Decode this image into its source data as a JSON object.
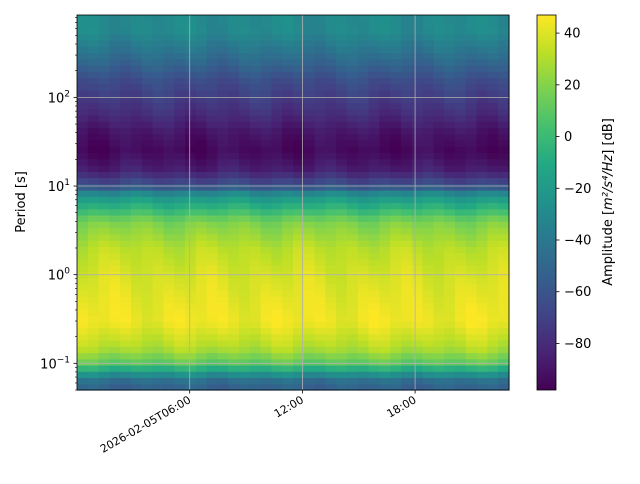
{
  "chart_data": {
    "type": "heatmap",
    "title": "",
    "xlabel": "",
    "ylabel": "Period [s]",
    "y_scale": "log",
    "ylim": [
      0.05,
      850
    ],
    "x_ticks": [
      {
        "value_hours": 6,
        "label": "2026-02-05T06:00"
      },
      {
        "value_hours": 12,
        "label": "12:00"
      },
      {
        "value_hours": 18,
        "label": "18:00"
      }
    ],
    "xlim_hours": [
      0,
      23
    ],
    "y_ticks": [
      {
        "value": 0.1,
        "label": "10",
        "exp": "−1"
      },
      {
        "value": 1,
        "label": "10",
        "exp": "0"
      },
      {
        "value": 10,
        "label": "10",
        "exp": "1"
      },
      {
        "value": 100,
        "label": "10",
        "exp": "2"
      }
    ],
    "grid": true,
    "colormap": "viridis",
    "colorbar": {
      "label_prefix": "Amplitude [",
      "label_math": "m²/s⁴/Hz",
      "label_suffix": "] [dB]",
      "range": [
        -98,
        47
      ],
      "ticks": [
        40,
        20,
        0,
        -20,
        -40,
        -60,
        -80
      ],
      "tick_labels": [
        "40",
        "20",
        "0",
        "−20",
        "−40",
        "−60",
        "−80"
      ]
    },
    "profile_db_by_period": [
      {
        "period": 0.05,
        "db": -55
      },
      {
        "period": 0.065,
        "db": -45
      },
      {
        "period": 0.08,
        "db": -20
      },
      {
        "period": 0.1,
        "db": 10
      },
      {
        "period": 0.15,
        "db": 30
      },
      {
        "period": 0.3,
        "db": 44
      },
      {
        "period": 0.5,
        "db": 42
      },
      {
        "period": 1,
        "db": 38
      },
      {
        "period": 2,
        "db": 32
      },
      {
        "period": 4,
        "db": 18
      },
      {
        "period": 8,
        "db": -25
      },
      {
        "period": 10,
        "db": -60
      },
      {
        "period": 15,
        "db": -85
      },
      {
        "period": 25,
        "db": -95
      },
      {
        "period": 40,
        "db": -90
      },
      {
        "period": 70,
        "db": -78
      },
      {
        "period": 150,
        "db": -65
      },
      {
        "period": 300,
        "db": -45
      },
      {
        "period": 550,
        "db": -30
      },
      {
        "period": 850,
        "db": -30
      }
    ],
    "time_bins": 40
  }
}
